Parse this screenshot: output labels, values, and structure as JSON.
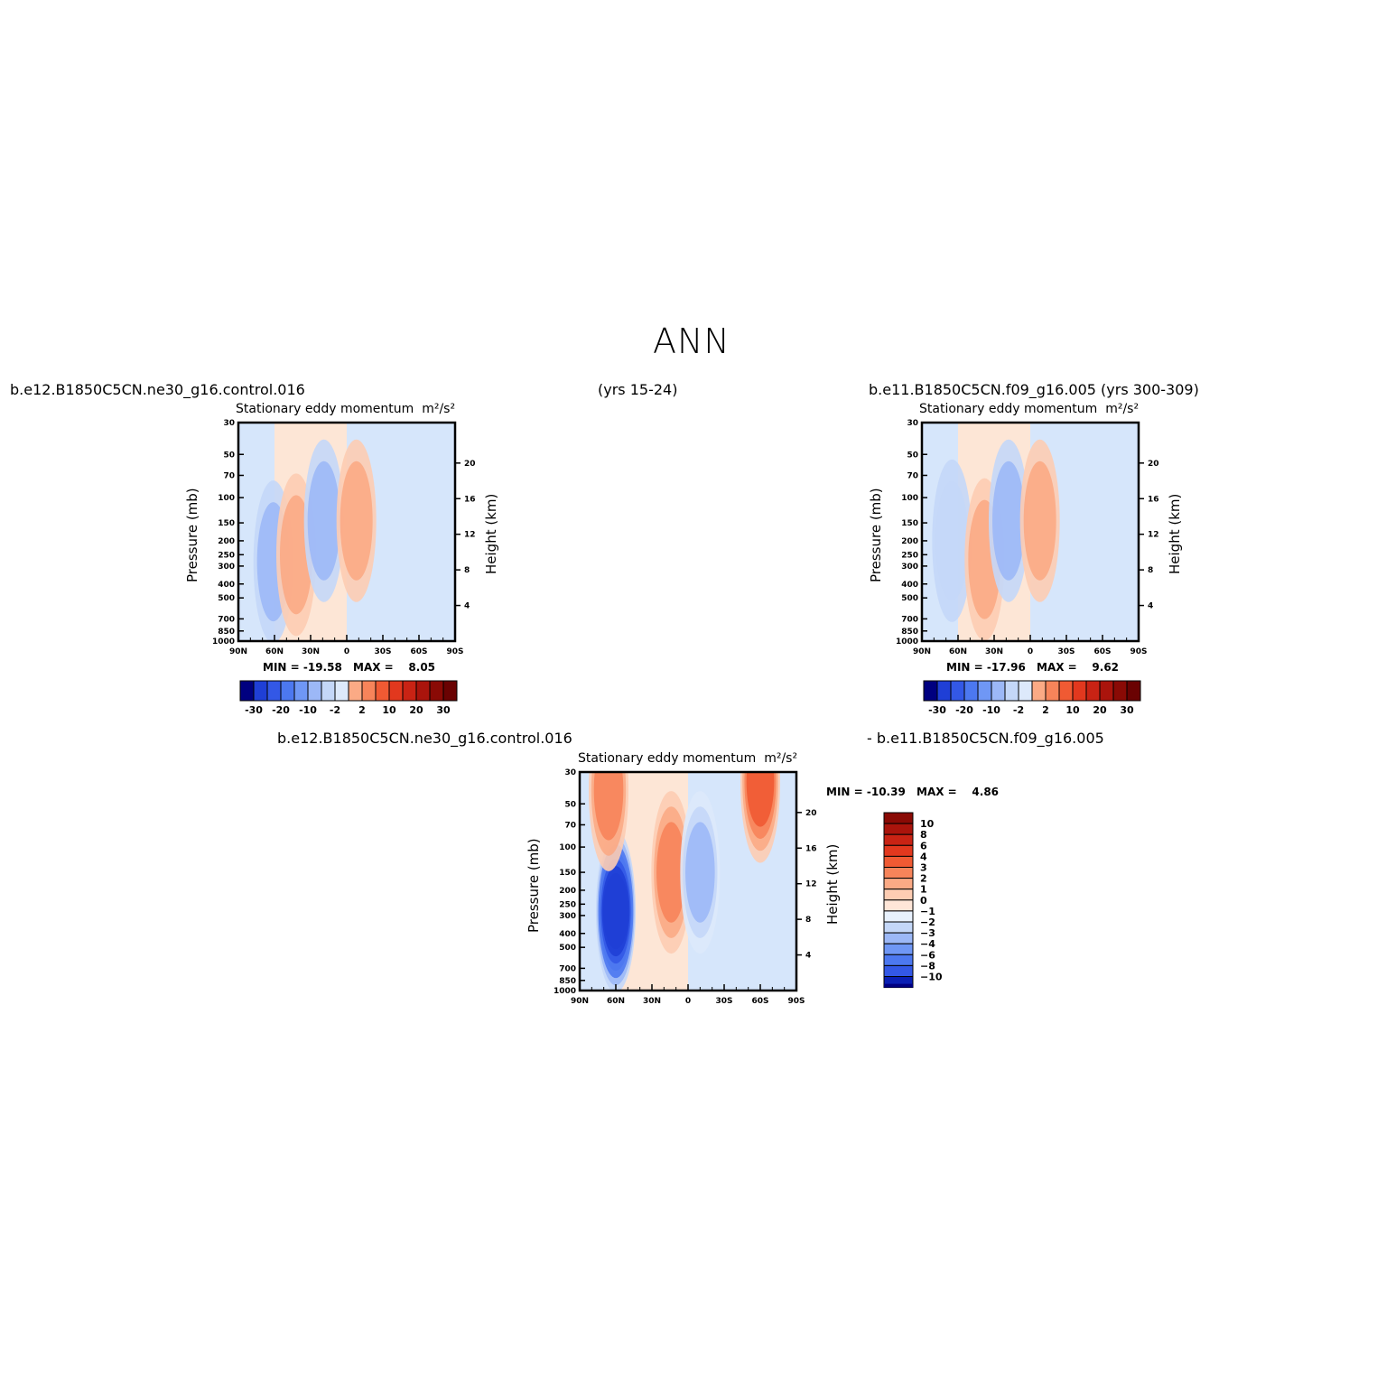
{
  "page": {
    "title": "ANN",
    "header_left": "b.e12.B1850C5CN.ne30_g16.control.016",
    "header_mid": "(yrs 15-24)",
    "header_right": "b.e11.B1850C5CN.f09_g16.005 (yrs 300-309)",
    "diff_left": "b.e12.B1850C5CN.ne30_g16.control.016",
    "diff_right": "- b.e11.B1850C5CN.f09_g16.005"
  },
  "chart_data": [
    {
      "type": "heatmap",
      "title": "Stationary eddy momentum",
      "units": "m²/s²",
      "ylabel": "Pressure (mb)",
      "ylabel_right": "Height (km)",
      "x_ticks": [
        "90N",
        "60N",
        "30N",
        "0",
        "30S",
        "60S",
        "90S"
      ],
      "y_ticks": [
        30,
        50,
        70,
        100,
        150,
        200,
        250,
        300,
        400,
        500,
        700,
        850,
        1000
      ],
      "y_right_ticks": [
        20,
        16,
        12,
        8,
        4
      ],
      "ylim": [
        1000,
        30
      ],
      "y_scale": "log",
      "min_label": "MIN = -19.58",
      "max_label": "MAX =    8.05",
      "levels": [
        -30,
        -25,
        -20,
        -15,
        -10,
        -5,
        -2,
        0,
        2,
        5,
        10,
        15,
        20,
        25,
        30
      ],
      "colorbar_labels": [
        "-30",
        "-20",
        "-10",
        "-2",
        "2",
        "10",
        "20",
        "30"
      ],
      "features": [
        {
          "lat": 61,
          "p": 280,
          "value": -8
        },
        {
          "lat": 42,
          "p": 250,
          "value": 6
        },
        {
          "lat": 19,
          "p": 145,
          "value": -7
        },
        {
          "lat": -8,
          "p": 145,
          "value": 5
        }
      ]
    },
    {
      "type": "heatmap",
      "title": "Stationary eddy momentum",
      "units": "m²/s²",
      "ylabel": "Pressure (mb)",
      "ylabel_right": "Height (km)",
      "x_ticks": [
        "90N",
        "60N",
        "30N",
        "0",
        "30S",
        "60S",
        "90S"
      ],
      "y_ticks": [
        30,
        50,
        70,
        100,
        150,
        200,
        250,
        300,
        400,
        500,
        700,
        850,
        1000
      ],
      "y_right_ticks": [
        20,
        16,
        12,
        8,
        4
      ],
      "ylim": [
        1000,
        30
      ],
      "y_scale": "log",
      "min_label": "MIN = -17.96",
      "max_label": "MAX =    9.62",
      "levels": [
        -30,
        -25,
        -20,
        -15,
        -10,
        -5,
        -2,
        0,
        2,
        5,
        10,
        15,
        20,
        25,
        30
      ],
      "colorbar_labels": [
        "-30",
        "-20",
        "-10",
        "-2",
        "2",
        "10",
        "20",
        "30"
      ],
      "features": [
        {
          "lat": 65,
          "p": 200,
          "value": -5
        },
        {
          "lat": 38,
          "p": 270,
          "value": 7
        },
        {
          "lat": 18,
          "p": 145,
          "value": -8
        },
        {
          "lat": -8,
          "p": 145,
          "value": 6
        }
      ]
    },
    {
      "type": "heatmap",
      "title": "Stationary eddy momentum",
      "units": "m²/s²",
      "ylabel": "Pressure (mb)",
      "ylabel_right": "Height (km)",
      "x_ticks": [
        "90N",
        "60N",
        "30N",
        "0",
        "30S",
        "60S",
        "90S"
      ],
      "y_ticks": [
        30,
        50,
        70,
        100,
        150,
        200,
        250,
        300,
        400,
        500,
        700,
        850,
        1000
      ],
      "y_right_ticks": [
        20,
        16,
        12,
        8,
        4
      ],
      "ylim": [
        1000,
        30
      ],
      "y_scale": "log",
      "min_label": "MIN = -10.39",
      "max_label": "MAX =    4.86",
      "levels": [
        -10,
        -8,
        -6,
        -4,
        -3,
        -2,
        -1,
        0,
        1,
        2,
        3,
        4,
        6,
        8,
        10
      ],
      "colorbar_labels": [
        "10",
        "8",
        "6",
        "4",
        "3",
        "2",
        "1",
        "0",
        "-1",
        "-2",
        "-3",
        "-4",
        "-6",
        "-8",
        "-10"
      ],
      "features": [
        {
          "lat": 60,
          "p": 280,
          "value": -10
        },
        {
          "lat": 66,
          "p": 40,
          "value": 3
        },
        {
          "lat": 14,
          "p": 150,
          "value": 3
        },
        {
          "lat": -10,
          "p": 150,
          "value": -3
        },
        {
          "lat": -60,
          "p": 35,
          "value": 4
        }
      ]
    }
  ],
  "colors": {
    "palette_21": [
      "#000080",
      "#0a1fb4",
      "#1f3fd6",
      "#3358e6",
      "#4c78f0",
      "#6f97f5",
      "#9cb8f7",
      "#c4d7f8",
      "#dde9fb",
      "#ffffff",
      "#ffe6d8",
      "#fdccb2",
      "#fbaa85",
      "#f7845a",
      "#f05a33",
      "#e2381e",
      "#c92314",
      "#aa140c",
      "#8a0a05",
      "#6a0202",
      "#4a0000"
    ],
    "bg_light_blue": "#d6e6fb",
    "bg_light_red": "#fde6d6"
  }
}
